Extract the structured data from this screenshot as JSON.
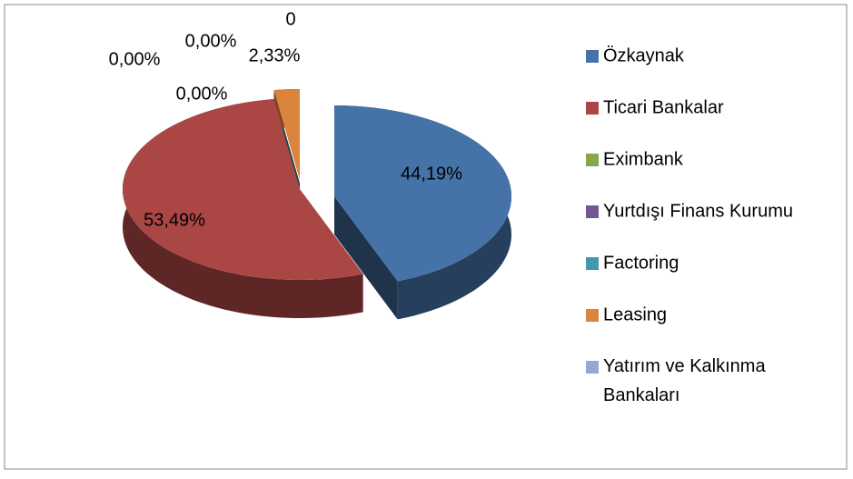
{
  "chart_data": {
    "type": "pie",
    "categories": [
      "Özkaynak",
      "Ticari Bankalar",
      "Eximbank",
      "Yurtdışı Finans Kurumu",
      "Factoring",
      "Leasing",
      "Yatırım ve Kalkınma Bankaları"
    ],
    "values": [
      44.19,
      53.49,
      0,
      0,
      0,
      2.33,
      0
    ],
    "value_labels": [
      "44,19%",
      "53,49%",
      "0,00%",
      "0,00%",
      "0,00%",
      "2,33%",
      "0"
    ],
    "colors": [
      "#4572a7",
      "#aa4643",
      "#89a54e",
      "#71588f",
      "#4198af",
      "#db843d",
      "#93a9cf"
    ],
    "legend": "right"
  }
}
